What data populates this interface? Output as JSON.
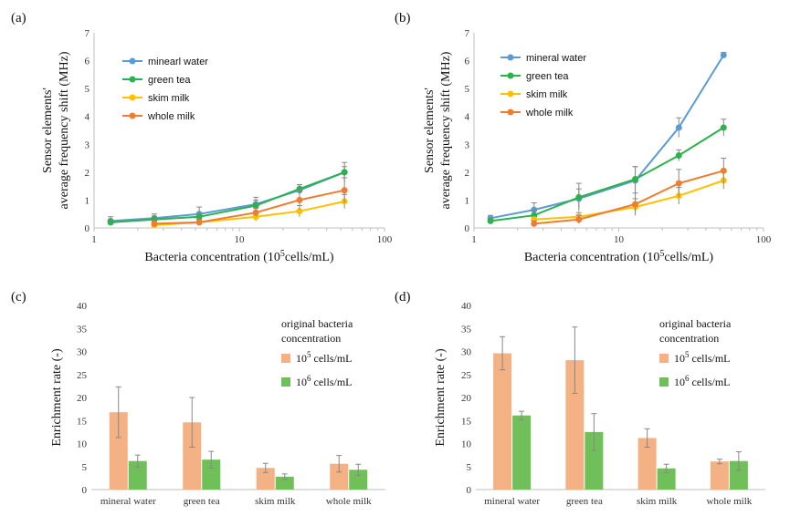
{
  "colors": {
    "blue": "#5b9bd5",
    "green": "#2bb24c",
    "yellow": "#ffc000",
    "orange": "#ed7d31",
    "bar_orange": "#f4b183",
    "bar_green": "#70c05a",
    "error": "#888888",
    "axis": "#bfbfbf"
  },
  "chart_data": [
    {
      "panel": "(a)",
      "type": "line",
      "xscale": "log",
      "xlim": [
        1,
        100
      ],
      "ylim": [
        0,
        7
      ],
      "xticks": [
        "1",
        "10",
        "100"
      ],
      "yticks": [
        "0",
        "1",
        "2",
        "3",
        "4",
        "5",
        "6",
        "7"
      ],
      "xlabel_pre": "Bacteria concentration (10",
      "xlabel_sup": "5",
      "xlabel_post": "cells/mL)",
      "ylabel_line1": "Sensor elements'",
      "ylabel_line2": "average frequency shift (MHz)",
      "series": [
        {
          "name": "minearl water",
          "color": "#5b9bd5",
          "x": [
            1.3,
            2.6,
            5.3,
            13,
            26,
            53
          ],
          "y": [
            0.25,
            0.35,
            0.5,
            0.85,
            1.35,
            2.0
          ],
          "err": [
            0.15,
            0.15,
            0.25,
            0.25,
            0.2,
            0.35
          ]
        },
        {
          "name": "green tea",
          "color": "#2bb24c",
          "x": [
            1.3,
            2.6,
            5.3,
            13,
            26,
            53
          ],
          "y": [
            0.2,
            0.3,
            0.4,
            0.8,
            1.4,
            2.0
          ],
          "err": [
            0.1,
            0.12,
            0.15,
            0.2,
            0.15,
            0.2
          ]
        },
        {
          "name": "skim milk",
          "color": "#ffc000",
          "x": [
            2.6,
            5.3,
            13,
            26,
            53
          ],
          "y": [
            0.1,
            0.2,
            0.4,
            0.6,
            0.95
          ],
          "err": [
            0.1,
            0.1,
            0.15,
            0.2,
            0.25
          ]
        },
        {
          "name": "whole milk",
          "color": "#ed7d31",
          "x": [
            2.6,
            5.3,
            13,
            26,
            53
          ],
          "y": [
            0.15,
            0.2,
            0.55,
            1.0,
            1.35
          ],
          "err": [
            0.1,
            0.1,
            0.15,
            0.35,
            0.45
          ]
        }
      ]
    },
    {
      "panel": "(b)",
      "type": "line",
      "xscale": "log",
      "xlim": [
        1,
        100
      ],
      "ylim": [
        0,
        7
      ],
      "xticks": [
        "1",
        "10",
        "100"
      ],
      "yticks": [
        "0",
        "1",
        "2",
        "3",
        "4",
        "5",
        "6",
        "7"
      ],
      "xlabel_pre": "Bacteria concentration (10",
      "xlabel_sup": "5",
      "xlabel_post": "cells/mL)",
      "ylabel_line1": "Sensor elements'",
      "ylabel_line2": "average frequency shift (MHz)",
      "series": [
        {
          "name": "mineral water",
          "color": "#5b9bd5",
          "x": [
            1.3,
            2.6,
            5.3,
            13,
            26,
            53
          ],
          "y": [
            0.35,
            0.65,
            1.05,
            1.7,
            3.6,
            6.2
          ],
          "err": [
            0.1,
            0.25,
            0.35,
            0.5,
            0.35,
            0.1
          ]
        },
        {
          "name": "green tea",
          "color": "#2bb24c",
          "x": [
            1.3,
            2.6,
            5.3,
            13,
            26,
            53
          ],
          "y": [
            0.25,
            0.45,
            1.1,
            1.75,
            2.6,
            3.6
          ],
          "err": [
            0.1,
            0.2,
            0.5,
            0.45,
            0.2,
            0.3
          ]
        },
        {
          "name": "skim milk",
          "color": "#ffc000",
          "x": [
            2.6,
            5.3,
            13,
            26,
            53
          ],
          "y": [
            0.3,
            0.4,
            0.75,
            1.15,
            1.7
          ],
          "err": [
            0.1,
            0.15,
            0.3,
            0.3,
            0.3
          ]
        },
        {
          "name": "whole milk",
          "color": "#ed7d31",
          "x": [
            2.6,
            5.3,
            13,
            26,
            53
          ],
          "y": [
            0.15,
            0.3,
            0.85,
            1.6,
            2.05
          ],
          "err": [
            0.1,
            0.15,
            0.4,
            0.5,
            0.45
          ]
        }
      ]
    },
    {
      "panel": "(c)",
      "type": "bar",
      "ylim": [
        0,
        40
      ],
      "yticks": [
        "0",
        "5",
        "10",
        "15",
        "20",
        "25",
        "30",
        "35",
        "40"
      ],
      "ylabel": "Enrichment rate (-)",
      "categories": [
        "mineral water",
        "green tea",
        "skim milk",
        "whole milk"
      ],
      "legend_title_1": "original bacteria",
      "legend_title_2": "concentration",
      "series": [
        {
          "name_base": "10",
          "name_sup": "5",
          "name_rest": " cells/mL",
          "color": "#f4b183",
          "values": [
            16.8,
            14.6,
            4.7,
            5.6
          ],
          "err": [
            5.5,
            5.4,
            1.0,
            1.8
          ]
        },
        {
          "name_base": "10",
          "name_sup": "6",
          "name_rest": " cells/mL",
          "color": "#70c05a",
          "values": [
            6.2,
            6.5,
            2.8,
            4.3
          ],
          "err": [
            1.3,
            1.8,
            0.6,
            1.2
          ]
        }
      ]
    },
    {
      "panel": "(d)",
      "type": "bar",
      "ylim": [
        0,
        40
      ],
      "yticks": [
        "0",
        "5",
        "10",
        "15",
        "20",
        "25",
        "30",
        "35",
        "40"
      ],
      "ylabel": "Enrichment rate (-)",
      "categories": [
        "mineral water",
        "green tea",
        "skim milk",
        "whole milk"
      ],
      "legend_title_1": "original bacteria",
      "legend_title_2": "concentration",
      "series": [
        {
          "name_base": "10",
          "name_sup": "5",
          "name_rest": " cells/mL",
          "color": "#f4b183",
          "values": [
            29.6,
            28.1,
            11.2,
            6.1
          ],
          "err": [
            3.6,
            7.2,
            2.0,
            0.5
          ]
        },
        {
          "name_base": "10",
          "name_sup": "6",
          "name_rest": " cells/mL",
          "color": "#70c05a",
          "values": [
            16.1,
            12.5,
            4.6,
            6.2
          ],
          "err": [
            0.9,
            4.0,
            0.9,
            2.0
          ]
        }
      ]
    }
  ]
}
